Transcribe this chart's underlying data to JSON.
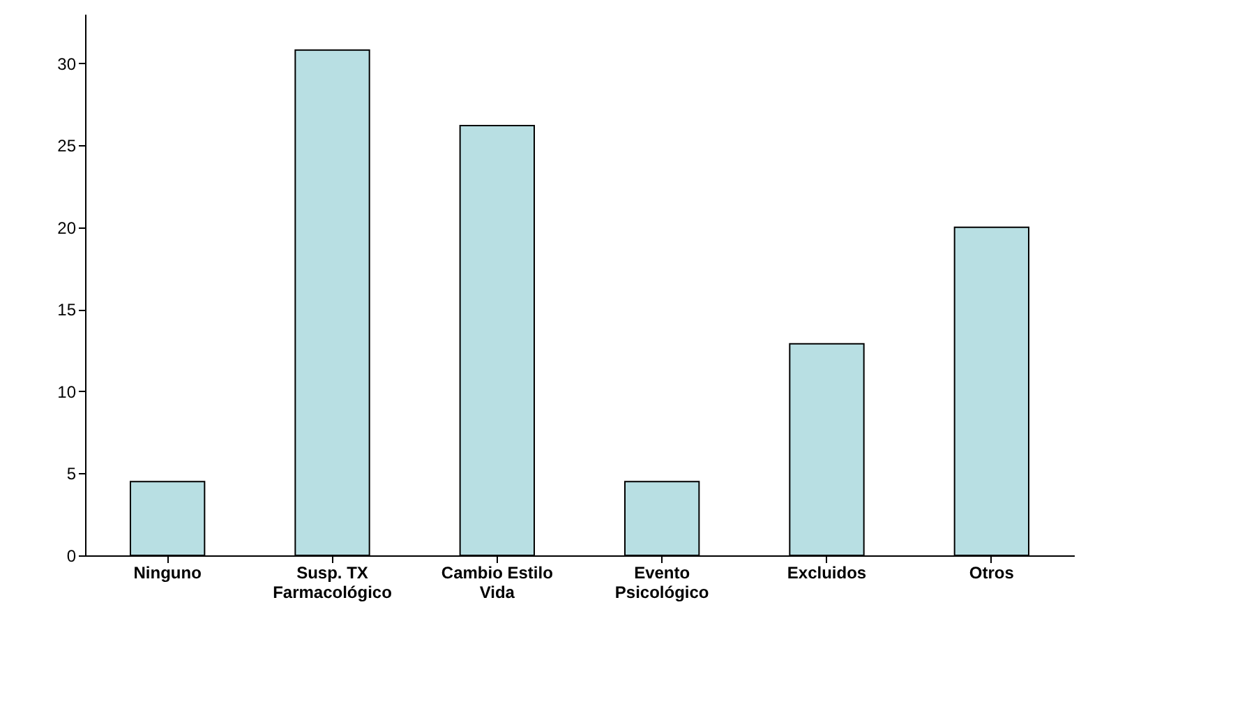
{
  "chart_data": {
    "type": "bar",
    "categories": [
      "Ninguno",
      "Susp. TX\nFarmacológico",
      "Cambio Estilo\nVida",
      "Evento\nPsicológico",
      "Excluidos",
      "Otros"
    ],
    "values": [
      4.5,
      30.8,
      26.2,
      4.5,
      12.9,
      20
    ],
    "color": "#b8dfe3",
    "ylim": [
      0,
      33
    ],
    "yticks": [
      0,
      5,
      10,
      15,
      20,
      25,
      30
    ],
    "grid": false
  }
}
